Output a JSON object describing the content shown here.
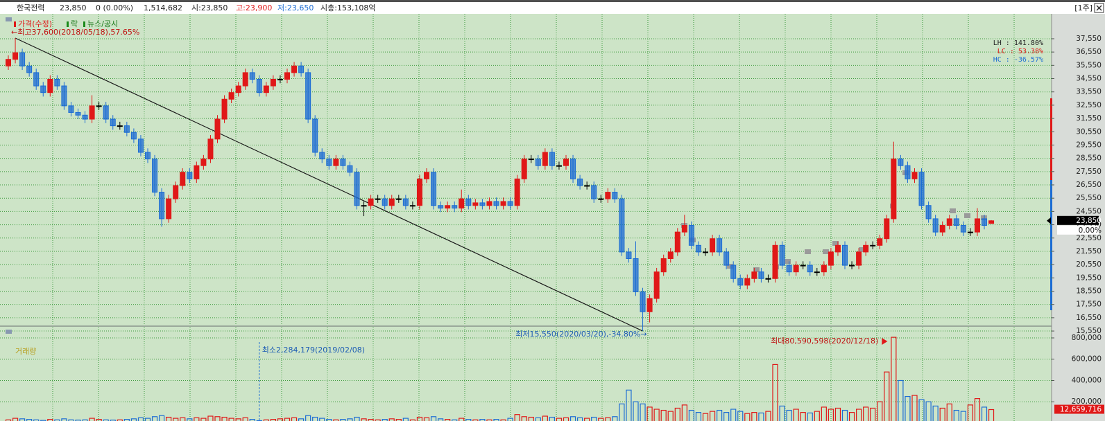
{
  "header": {
    "name": "한국전력",
    "price": "23,850",
    "change": "0 (0.00%)",
    "volume": "1,514,682",
    "open": "시:23,850",
    "high": "고:23,900",
    "low": "저:23,650",
    "mcap": "시총:153,108억",
    "period": "[1주]"
  },
  "chart_data": [
    {
      "type": "candlestick",
      "legend": [
        "가격(수정)",
        "락",
        "뉴스/공시"
      ],
      "annotations": {
        "max": "←최고37,600(2018/05/18),57.65%",
        "min": "최저15,550(2020/03/20),-34.80%→"
      },
      "stats": [
        "LH : 141.80%",
        "LC :  53.38%",
        "HC : -36.57%"
      ],
      "up_color": "#e01818",
      "down_color": "#1c6cd4",
      "flat_color": "#000000",
      "grid": true,
      "last_label": "23,850",
      "last_change": "0.00%",
      "ylim": [
        15970,
        39320
      ],
      "yticks": [
        {
          "value": 37550,
          "label": "37,550"
        },
        {
          "value": 36550,
          "label": "36,550"
        },
        {
          "value": 35550,
          "label": "35,550"
        },
        {
          "value": 34550,
          "label": "34,550"
        },
        {
          "value": 33550,
          "label": "33,550"
        },
        {
          "value": 32550,
          "label": "32,550"
        },
        {
          "value": 31550,
          "label": "31,550"
        },
        {
          "value": 30550,
          "label": "30,550"
        },
        {
          "value": 29550,
          "label": "29,550"
        },
        {
          "value": 28550,
          "label": "28,550"
        },
        {
          "value": 27550,
          "label": "27,550"
        },
        {
          "value": 26550,
          "label": "26,550"
        },
        {
          "value": 25550,
          "label": "25,550"
        },
        {
          "value": 24550,
          "label": "24,550"
        },
        {
          "value": 23550,
          "label": "23,550"
        },
        {
          "value": 22550,
          "label": "22,550"
        },
        {
          "value": 21550,
          "label": "21,550"
        },
        {
          "value": 20550,
          "label": "20,550"
        },
        {
          "value": 19550,
          "label": "19,550"
        },
        {
          "value": 18550,
          "label": "18,550"
        },
        {
          "value": 17550,
          "label": "17,550"
        },
        {
          "value": 16550,
          "label": "16,550"
        },
        {
          "value": 15550,
          "label": "15,550"
        }
      ],
      "ohlc": [
        [
          35500,
          36300,
          35200,
          36000
        ],
        [
          36000,
          37600,
          35700,
          36500
        ],
        [
          36500,
          36800,
          35200,
          35500
        ],
        [
          35500,
          35800,
          34700,
          35000
        ],
        [
          35000,
          35300,
          33700,
          34000
        ],
        [
          34000,
          34300,
          33200,
          33500
        ],
        [
          33500,
          34800,
          33200,
          34500
        ],
        [
          34500,
          34800,
          33700,
          34000
        ],
        [
          34000,
          34300,
          32200,
          32500
        ],
        [
          32500,
          32800,
          31700,
          32000
        ],
        [
          32000,
          32300,
          31500,
          31800
        ],
        [
          31800,
          32100,
          31200,
          31500
        ],
        [
          31500,
          33300,
          31200,
          32500
        ],
        [
          32500,
          32800,
          32200,
          32500
        ],
        [
          32500,
          32800,
          31200,
          31500
        ],
        [
          31500,
          31800,
          30700,
          31000
        ],
        [
          31000,
          31300,
          30700,
          31000
        ],
        [
          31000,
          31300,
          30200,
          30500
        ],
        [
          30500,
          30800,
          29700,
          30000
        ],
        [
          30000,
          30300,
          28700,
          29000
        ],
        [
          29000,
          29300,
          28200,
          28500
        ],
        [
          28500,
          28800,
          25700,
          26000
        ],
        [
          26000,
          26300,
          23400,
          24000
        ],
        [
          24000,
          25800,
          23700,
          25500
        ],
        [
          25500,
          26800,
          25200,
          26500
        ],
        [
          26500,
          27800,
          26200,
          27500
        ],
        [
          27500,
          27800,
          26700,
          27000
        ],
        [
          27000,
          28300,
          26700,
          28000
        ],
        [
          28000,
          28800,
          27700,
          28500
        ],
        [
          28500,
          30300,
          28200,
          30000
        ],
        [
          30000,
          31800,
          29700,
          31500
        ],
        [
          31500,
          33300,
          31200,
          33000
        ],
        [
          33000,
          33800,
          32700,
          33500
        ],
        [
          33500,
          34300,
          33200,
          34000
        ],
        [
          34000,
          35300,
          33700,
          35000
        ],
        [
          35000,
          35300,
          34200,
          34500
        ],
        [
          34500,
          34800,
          33200,
          33500
        ],
        [
          33500,
          34300,
          33200,
          34000
        ],
        [
          34000,
          34800,
          33700,
          34500
        ],
        [
          34500,
          34800,
          34200,
          34500
        ],
        [
          34500,
          35300,
          34200,
          35000
        ],
        [
          35000,
          35800,
          34700,
          35500
        ],
        [
          35500,
          35800,
          34700,
          35000
        ],
        [
          35000,
          35300,
          31200,
          31500
        ],
        [
          31500,
          31800,
          28700,
          29000
        ],
        [
          29000,
          29300,
          28200,
          28500
        ],
        [
          28500,
          28800,
          27700,
          28000
        ],
        [
          28000,
          28800,
          27700,
          28500
        ],
        [
          28500,
          28800,
          27700,
          28000
        ],
        [
          28000,
          28300,
          27200,
          27500
        ],
        [
          27500,
          27800,
          24700,
          25000
        ],
        [
          25000,
          25300,
          24200,
          25000
        ],
        [
          25000,
          25800,
          24700,
          25500
        ],
        [
          25500,
          25800,
          25200,
          25500
        ],
        [
          25500,
          25800,
          24700,
          25000
        ],
        [
          25000,
          25800,
          24700,
          25500
        ],
        [
          25500,
          25800,
          25200,
          25500
        ],
        [
          25500,
          25800,
          24700,
          25000
        ],
        [
          25000,
          25300,
          24700,
          25000
        ],
        [
          25000,
          27300,
          24700,
          27000
        ],
        [
          27000,
          27800,
          26700,
          27500
        ],
        [
          27500,
          27800,
          24700,
          25000
        ],
        [
          25000,
          25300,
          24500,
          24800
        ],
        [
          24800,
          25300,
          24500,
          25000
        ],
        [
          25000,
          25300,
          24500,
          24800
        ],
        [
          24800,
          26200,
          24500,
          25500
        ],
        [
          25500,
          25800,
          24700,
          25000
        ],
        [
          25000,
          25500,
          24700,
          25200
        ],
        [
          25200,
          25500,
          24700,
          25000
        ],
        [
          25000,
          25600,
          24700,
          25300
        ],
        [
          25300,
          25600,
          24700,
          25000
        ],
        [
          25000,
          25600,
          24700,
          25300
        ],
        [
          25300,
          25600,
          24700,
          25000
        ],
        [
          25000,
          27300,
          24700,
          27000
        ],
        [
          27000,
          28800,
          26700,
          28500
        ],
        [
          28500,
          28800,
          28200,
          28500
        ],
        [
          28500,
          28800,
          27700,
          28000
        ],
        [
          28000,
          29300,
          27700,
          29000
        ],
        [
          29000,
          29300,
          27700,
          28000
        ],
        [
          28000,
          28300,
          27700,
          28000
        ],
        [
          28000,
          28800,
          27700,
          28500
        ],
        [
          28500,
          28800,
          26700,
          27000
        ],
        [
          27000,
          27300,
          26200,
          26500
        ],
        [
          26500,
          26800,
          26200,
          26500
        ],
        [
          26500,
          26800,
          25200,
          25500
        ],
        [
          25500,
          25800,
          25200,
          25500
        ],
        [
          25500,
          26300,
          25200,
          26000
        ],
        [
          26000,
          26300,
          25200,
          25500
        ],
        [
          25500,
          25800,
          21200,
          21500
        ],
        [
          21500,
          21800,
          20700,
          21000
        ],
        [
          21000,
          22300,
          18200,
          18500
        ],
        [
          18500,
          18800,
          15550,
          17000
        ],
        [
          17000,
          18300,
          16200,
          18000
        ],
        [
          18000,
          20300,
          17700,
          20000
        ],
        [
          20000,
          21300,
          19700,
          21000
        ],
        [
          21000,
          21800,
          20700,
          21500
        ],
        [
          21500,
          23300,
          21200,
          23000
        ],
        [
          23000,
          24300,
          22700,
          23500
        ],
        [
          23500,
          23800,
          21700,
          22000
        ],
        [
          22000,
          22300,
          21200,
          21500
        ],
        [
          21500,
          21800,
          21200,
          21500
        ],
        [
          21500,
          22800,
          21200,
          22500
        ],
        [
          22500,
          22800,
          21200,
          21500
        ],
        [
          21500,
          21800,
          20200,
          20500
        ],
        [
          20500,
          20800,
          19200,
          19500
        ],
        [
          19500,
          19800,
          18700,
          19000
        ],
        [
          19000,
          19800,
          18700,
          19500
        ],
        [
          19500,
          20300,
          19200,
          20000
        ],
        [
          20000,
          20300,
          19200,
          19500
        ],
        [
          19500,
          19800,
          19200,
          19500
        ],
        [
          19500,
          22300,
          19200,
          22000
        ],
        [
          22000,
          22300,
          20200,
          20500
        ],
        [
          20500,
          20800,
          19700,
          20000
        ],
        [
          20000,
          20800,
          19700,
          20500
        ],
        [
          20500,
          20800,
          20200,
          20500
        ],
        [
          20500,
          20800,
          19700,
          20000
        ],
        [
          20000,
          20300,
          19700,
          20000
        ],
        [
          20000,
          20800,
          19700,
          20500
        ],
        [
          20500,
          21800,
          20200,
          21500
        ],
        [
          21500,
          22300,
          21200,
          22000
        ],
        [
          22000,
          22300,
          20200,
          20500
        ],
        [
          20500,
          20800,
          20200,
          20500
        ],
        [
          20500,
          21800,
          20200,
          21500
        ],
        [
          21500,
          22300,
          21200,
          22000
        ],
        [
          22000,
          22300,
          21700,
          22000
        ],
        [
          22000,
          22800,
          21700,
          22500
        ],
        [
          22500,
          24300,
          22200,
          24000
        ],
        [
          24000,
          29800,
          23700,
          28500
        ],
        [
          28500,
          28800,
          27700,
          28000
        ],
        [
          28000,
          28300,
          26700,
          27000
        ],
        [
          27000,
          27800,
          26700,
          27500
        ],
        [
          27500,
          27800,
          24700,
          25000
        ],
        [
          25000,
          25300,
          23700,
          24000
        ],
        [
          24000,
          24300,
          22700,
          23000
        ],
        [
          23000,
          23800,
          22700,
          23500
        ],
        [
          23500,
          24300,
          23200,
          24000
        ],
        [
          24000,
          24300,
          23200,
          23500
        ],
        [
          23500,
          23800,
          22700,
          23000
        ],
        [
          23000,
          23300,
          22700,
          23000
        ],
        [
          23000,
          24800,
          22700,
          24000
        ],
        [
          24000,
          24300,
          23200,
          23500
        ],
        [
          23650,
          23900,
          23650,
          23850
        ]
      ]
    },
    {
      "type": "bar",
      "title": "거래량",
      "annotations": {
        "max": "최대80,590,598(2020/12/18)",
        "min": "최소2,284,179(2019/02/08)"
      },
      "last_label": "12,659,716",
      "ylim": [
        0,
        904000
      ],
      "yticks": [
        {
          "value": 200000,
          "label": "200,000"
        },
        {
          "value": 400000,
          "label": "400,000"
        },
        {
          "value": 600000,
          "label": "600,000"
        },
        {
          "value": 800000,
          "label": "800,000"
        }
      ],
      "values": [
        30000,
        45000,
        40000,
        35000,
        30000,
        25000,
        35000,
        30000,
        40000,
        30000,
        28000,
        30000,
        45000,
        35000,
        30000,
        28000,
        30000,
        35000,
        40000,
        50000,
        45000,
        60000,
        70000,
        55000,
        45000,
        50000,
        40000,
        50000,
        45000,
        65000,
        60000,
        55000,
        45000,
        40000,
        50000,
        35000,
        22842,
        30000,
        35000,
        40000,
        45000,
        50000,
        40000,
        70000,
        55000,
        45000,
        35000,
        30000,
        35000,
        40000,
        55000,
        40000,
        35000,
        30000,
        35000,
        40000,
        35000,
        45000,
        30000,
        55000,
        50000,
        60000,
        40000,
        35000,
        30000,
        45000,
        35000,
        30000,
        35000,
        30000,
        35000,
        30000,
        45000,
        80000,
        60000,
        55000,
        50000,
        65000,
        55000,
        45000,
        50000,
        60000,
        50000,
        45000,
        55000,
        45000,
        50000,
        60000,
        180000,
        310000,
        200000,
        180000,
        150000,
        130000,
        120000,
        110000,
        140000,
        170000,
        120000,
        100000,
        90000,
        110000,
        120000,
        100000,
        130000,
        110000,
        90000,
        100000,
        95000,
        110000,
        550000,
        160000,
        120000,
        130000,
        100000,
        95000,
        110000,
        150000,
        130000,
        140000,
        120000,
        100000,
        130000,
        150000,
        140000,
        200000,
        480000,
        805906,
        400000,
        250000,
        260000,
        220000,
        200000,
        160000,
        140000,
        180000,
        120000,
        110000,
        170000,
        230000,
        150000,
        126597
      ]
    }
  ]
}
